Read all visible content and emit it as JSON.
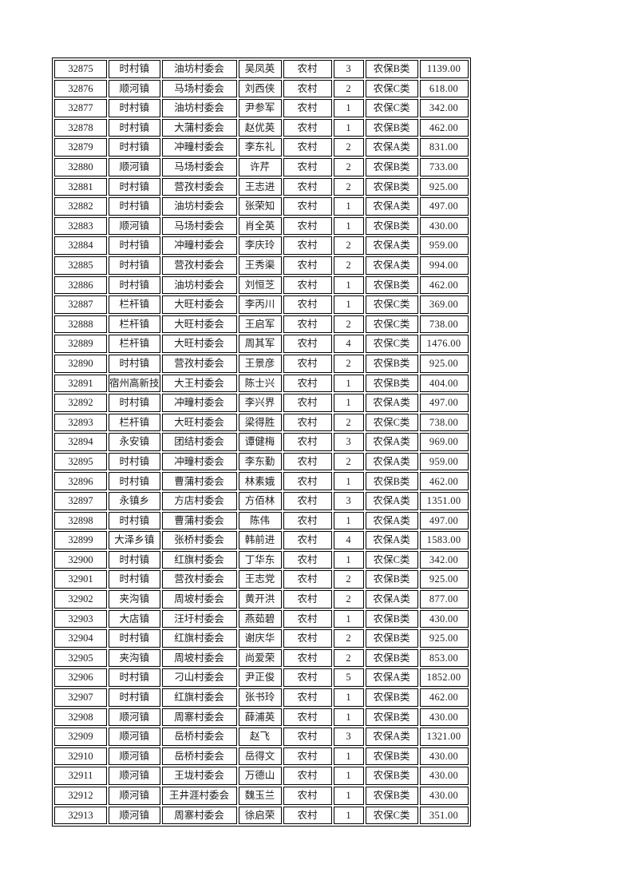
{
  "page": {
    "background_color": "#ffffff",
    "border_color": "#000000",
    "text_color": "#1c1c1c"
  },
  "table": {
    "column_keys": [
      "record_no",
      "town",
      "village_committee",
      "person_name",
      "category",
      "count",
      "insurance_class",
      "amount"
    ],
    "rows": [
      [
        "32875",
        "时村镇",
        "油坊村委会",
        "吴凤英",
        "农村",
        "3",
        "农保B类",
        "1139.00"
      ],
      [
        "32876",
        "顺河镇",
        "马场村委会",
        "刘西侠",
        "农村",
        "2",
        "农保C类",
        "618.00"
      ],
      [
        "32877",
        "时村镇",
        "油坊村委会",
        "尹参军",
        "农村",
        "1",
        "农保C类",
        "342.00"
      ],
      [
        "32878",
        "时村镇",
        "大蒲村委会",
        "赵优英",
        "农村",
        "1",
        "农保B类",
        "462.00"
      ],
      [
        "32879",
        "时村镇",
        "冲疃村委会",
        "李东礼",
        "农村",
        "2",
        "农保A类",
        "831.00"
      ],
      [
        "32880",
        "顺河镇",
        "马场村委会",
        "许芹",
        "农村",
        "2",
        "农保B类",
        "733.00"
      ],
      [
        "32881",
        "时村镇",
        "营孜村委会",
        "王志进",
        "农村",
        "2",
        "农保B类",
        "925.00"
      ],
      [
        "32882",
        "时村镇",
        "油坊村委会",
        "张荣知",
        "农村",
        "1",
        "农保A类",
        "497.00"
      ],
      [
        "32883",
        "顺河镇",
        "马场村委会",
        "肖全英",
        "农村",
        "1",
        "农保B类",
        "430.00"
      ],
      [
        "32884",
        "时村镇",
        "冲疃村委会",
        "李庆玲",
        "农村",
        "2",
        "农保A类",
        "959.00"
      ],
      [
        "32885",
        "时村镇",
        "营孜村委会",
        "王秀渠",
        "农村",
        "2",
        "农保A类",
        "994.00"
      ],
      [
        "32886",
        "时村镇",
        "油坊村委会",
        "刘恒芝",
        "农村",
        "1",
        "农保B类",
        "462.00"
      ],
      [
        "32887",
        "栏杆镇",
        "大旺村委会",
        "李丙川",
        "农村",
        "1",
        "农保C类",
        "369.00"
      ],
      [
        "32888",
        "栏杆镇",
        "大旺村委会",
        "王启军",
        "农村",
        "2",
        "农保C类",
        "738.00"
      ],
      [
        "32889",
        "栏杆镇",
        "大旺村委会",
        "周其军",
        "农村",
        "4",
        "农保C类",
        "1476.00"
      ],
      [
        "32890",
        "时村镇",
        "营孜村委会",
        "王景彦",
        "农村",
        "2",
        "农保B类",
        "925.00"
      ],
      [
        "32891",
        "宿州高新技",
        "大王村委会",
        "陈士兴",
        "农村",
        "1",
        "农保B类",
        "404.00"
      ],
      [
        "32892",
        "时村镇",
        "冲疃村委会",
        "李兴界",
        "农村",
        "1",
        "农保A类",
        "497.00"
      ],
      [
        "32893",
        "栏杆镇",
        "大旺村委会",
        "梁得胜",
        "农村",
        "2",
        "农保C类",
        "738.00"
      ],
      [
        "32894",
        "永安镇",
        "团结村委会",
        "谭健梅",
        "农村",
        "3",
        "农保A类",
        "969.00"
      ],
      [
        "32895",
        "时村镇",
        "冲疃村委会",
        "李东勤",
        "农村",
        "2",
        "农保A类",
        "959.00"
      ],
      [
        "32896",
        "时村镇",
        "曹蒲村委会",
        "林素娥",
        "农村",
        "1",
        "农保B类",
        "462.00"
      ],
      [
        "32897",
        "永镇乡",
        "方店村委会",
        "方佰林",
        "农村",
        "3",
        "农保A类",
        "1351.00"
      ],
      [
        "32898",
        "时村镇",
        "曹蒲村委会",
        "陈伟",
        "农村",
        "1",
        "农保A类",
        "497.00"
      ],
      [
        "32899",
        "大泽乡镇",
        "张桥村委会",
        "韩前进",
        "农村",
        "4",
        "农保A类",
        "1583.00"
      ],
      [
        "32900",
        "时村镇",
        "红旗村委会",
        "丁华东",
        "农村",
        "1",
        "农保C类",
        "342.00"
      ],
      [
        "32901",
        "时村镇",
        "营孜村委会",
        "王志党",
        "农村",
        "2",
        "农保B类",
        "925.00"
      ],
      [
        "32902",
        "夹沟镇",
        "周坡村委会",
        "黄开洪",
        "农村",
        "2",
        "农保A类",
        "877.00"
      ],
      [
        "32903",
        "大店镇",
        "汪圩村委会",
        "燕茹碧",
        "农村",
        "1",
        "农保B类",
        "430.00"
      ],
      [
        "32904",
        "时村镇",
        "红旗村委会",
        "谢庆华",
        "农村",
        "2",
        "农保B类",
        "925.00"
      ],
      [
        "32905",
        "夹沟镇",
        "周坡村委会",
        "尚爱荣",
        "农村",
        "2",
        "农保B类",
        "853.00"
      ],
      [
        "32906",
        "时村镇",
        "刁山村委会",
        "尹正俊",
        "农村",
        "5",
        "农保A类",
        "1852.00"
      ],
      [
        "32907",
        "时村镇",
        "红旗村委会",
        "张书玲",
        "农村",
        "1",
        "农保B类",
        "462.00"
      ],
      [
        "32908",
        "顺河镇",
        "周寨村委会",
        "薛浦英",
        "农村",
        "1",
        "农保B类",
        "430.00"
      ],
      [
        "32909",
        "顺河镇",
        "岳桥村委会",
        "赵飞",
        "农村",
        "3",
        "农保A类",
        "1321.00"
      ],
      [
        "32910",
        "顺河镇",
        "岳桥村委会",
        "岳得文",
        "农村",
        "1",
        "农保B类",
        "430.00"
      ],
      [
        "32911",
        "顺河镇",
        "王垅村委会",
        "万德山",
        "农村",
        "1",
        "农保B类",
        "430.00"
      ],
      [
        "32912",
        "顺河镇",
        "王井涯村委会",
        "魏玉兰",
        "农村",
        "1",
        "农保B类",
        "430.00"
      ],
      [
        "32913",
        "顺河镇",
        "周寨村委会",
        "徐启荣",
        "农村",
        "1",
        "农保C类",
        "351.00"
      ]
    ]
  }
}
